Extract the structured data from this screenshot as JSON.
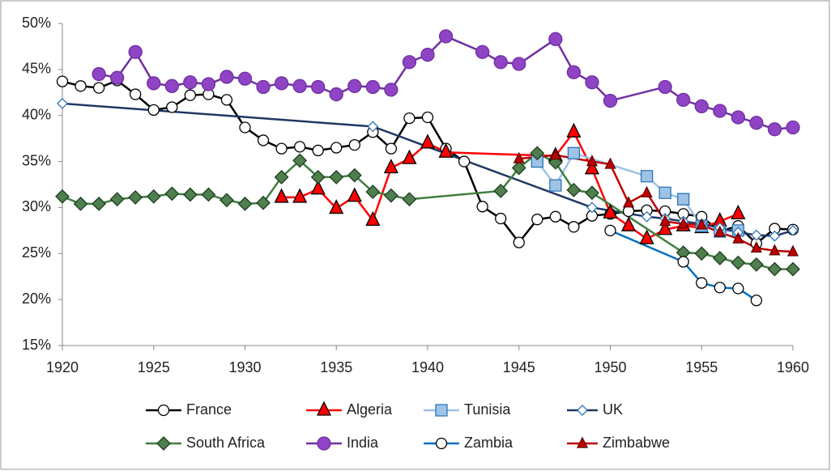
{
  "chart_data": {
    "type": "line",
    "xlim": [
      1920,
      1960
    ],
    "xticks": [
      1920,
      1925,
      1930,
      1935,
      1940,
      1945,
      1950,
      1955,
      1960
    ],
    "ylim": [
      15,
      50
    ],
    "yticks": [
      {
        "value": 15,
        "label": "15%"
      },
      {
        "value": 20,
        "label": "20%"
      },
      {
        "value": 25,
        "label": "25%"
      },
      {
        "value": 30,
        "label": "30%"
      },
      {
        "value": 35,
        "label": "35%"
      },
      {
        "value": 40,
        "label": "40%"
      },
      {
        "value": 45,
        "label": "45%"
      },
      {
        "value": 50,
        "label": "50%"
      }
    ],
    "grid": false,
    "legend": "bottom",
    "series": [
      {
        "name": "France",
        "color": "#000000",
        "marker": "circle",
        "marker_fill": "#ffffff",
        "marker_stroke": "#000000",
        "x": [
          1920,
          1921,
          1922,
          1923,
          1924,
          1925,
          1926,
          1927,
          1928,
          1929,
          1930,
          1931,
          1932,
          1933,
          1934,
          1935,
          1936,
          1937,
          1938,
          1939,
          1940,
          1941,
          1942,
          1943,
          1944,
          1945,
          1946,
          1947,
          1948,
          1949,
          1950,
          1951,
          1952,
          1953,
          1954,
          1955,
          1956,
          1957,
          1958,
          1959,
          1960
        ],
        "values": [
          43.7,
          43.2,
          43.0,
          43.8,
          42.3,
          40.6,
          40.9,
          42.2,
          42.3,
          41.7,
          38.7,
          37.3,
          36.4,
          36.6,
          36.2,
          36.5,
          36.8,
          38.2,
          36.4,
          39.7,
          39.8,
          36.4,
          35.0,
          30.1,
          28.8,
          26.2,
          28.7,
          29.0,
          27.9,
          29.1,
          29.3,
          29.6,
          29.7,
          29.6,
          29.3,
          29.0,
          27.4,
          28.0,
          26.1,
          27.7,
          27.6
        ]
      },
      {
        "name": "Algeria",
        "color": "#ff0000",
        "marker": "triangle",
        "marker_fill": "#ff0000",
        "marker_stroke": "#000000",
        "x": [
          1932,
          1933,
          1934,
          1935,
          1936,
          1937,
          1938,
          1939,
          1940,
          1941,
          1947,
          1948,
          1949,
          1950,
          1951,
          1952,
          1953,
          1954,
          1955,
          1956,
          1957
        ],
        "values": [
          31.1,
          31.1,
          32.0,
          29.9,
          31.2,
          28.6,
          34.3,
          35.3,
          37.0,
          36.0,
          35.6,
          38.2,
          34.2,
          29.4,
          28.0,
          26.6,
          27.6,
          28.0,
          27.8,
          28.5,
          29.3
        ]
      },
      {
        "name": "Tunisia",
        "color": "#9dc3e6",
        "marker": "square",
        "marker_fill": "#9dc3e6",
        "marker_stroke": "#2e75b6",
        "x": [
          1946,
          1947,
          1948,
          1952,
          1953,
          1954,
          1955,
          1956,
          1957
        ],
        "values": [
          35.0,
          32.4,
          35.9,
          33.4,
          31.6,
          30.9,
          28.0,
          27.4,
          27.5
        ]
      },
      {
        "name": "UK",
        "color": "#1f3864",
        "marker": "diamond-small",
        "marker_fill": "#ffffff",
        "marker_stroke": "#2e75b6",
        "x": [
          1920,
          1937,
          1949,
          1952,
          1953,
          1954,
          1955,
          1956,
          1957,
          1958,
          1959,
          1960
        ],
        "values": [
          41.3,
          38.8,
          30.0,
          29.0,
          28.8,
          28.5,
          28.2,
          27.8,
          27.3,
          27.0,
          26.9,
          27.5
        ]
      },
      {
        "name": "South Africa",
        "color": "#3f7f3f",
        "marker": "diamond",
        "marker_fill": "#4f7f4f",
        "marker_stroke": "#1e3e1e",
        "x": [
          1920,
          1921,
          1922,
          1923,
          1924,
          1925,
          1926,
          1927,
          1928,
          1929,
          1930,
          1931,
          1932,
          1933,
          1934,
          1935,
          1936,
          1937,
          1938,
          1939,
          1944,
          1945,
          1946,
          1947,
          1948,
          1949,
          1954,
          1955,
          1956,
          1957,
          1958,
          1959,
          1960
        ],
        "values": [
          31.2,
          30.4,
          30.4,
          30.9,
          31.1,
          31.2,
          31.5,
          31.4,
          31.4,
          30.8,
          30.4,
          30.5,
          33.3,
          35.1,
          33.3,
          33.3,
          33.5,
          31.7,
          31.3,
          30.9,
          31.8,
          34.3,
          35.9,
          34.9,
          31.9,
          31.6,
          25.1,
          25.0,
          24.5,
          24.0,
          23.8,
          23.3,
          23.3
        ]
      },
      {
        "name": "India",
        "color": "#7030a0",
        "marker": "circle-big",
        "marker_fill": "#8e44c4",
        "marker_stroke": "#7030a0",
        "x": [
          1922,
          1923,
          1924,
          1925,
          1926,
          1927,
          1928,
          1929,
          1930,
          1931,
          1932,
          1933,
          1934,
          1935,
          1936,
          1937,
          1938,
          1939,
          1940,
          1941,
          1943,
          1944,
          1945,
          1947,
          1948,
          1949,
          1950,
          1953,
          1954,
          1955,
          1956,
          1957,
          1958,
          1959,
          1960
        ],
        "values": [
          44.5,
          44.1,
          46.9,
          43.5,
          43.2,
          43.6,
          43.4,
          44.2,
          44.0,
          43.1,
          43.5,
          43.2,
          43.1,
          42.3,
          43.2,
          43.1,
          42.8,
          45.8,
          46.6,
          48.6,
          46.9,
          45.8,
          45.6,
          48.3,
          44.7,
          43.6,
          41.6,
          43.1,
          41.7,
          41.0,
          40.5,
          39.8,
          39.2,
          38.5,
          38.7
        ]
      },
      {
        "name": "Zambia",
        "color": "#0070c0",
        "marker": "circle",
        "marker_fill": "#ffffff",
        "marker_stroke": "#000000",
        "x": [
          1950,
          1954,
          1955,
          1956,
          1957,
          1958
        ],
        "values": [
          27.5,
          24.1,
          21.8,
          21.3,
          21.2,
          19.9
        ]
      },
      {
        "name": "Zimbabwe",
        "color": "#c00000",
        "marker": "triangle-small",
        "marker_fill": "#c00000",
        "marker_stroke": "#600000",
        "x": [
          1945,
          1947,
          1949,
          1950,
          1951,
          1952,
          1953,
          1954,
          1955,
          1956,
          1957,
          1958,
          1959,
          1960
        ],
        "values": [
          35.3,
          35.7,
          35.0,
          34.7,
          30.5,
          31.6,
          28.5,
          28.2,
          28.1,
          27.3,
          26.6,
          25.6,
          25.3,
          25.2
        ]
      }
    ]
  }
}
